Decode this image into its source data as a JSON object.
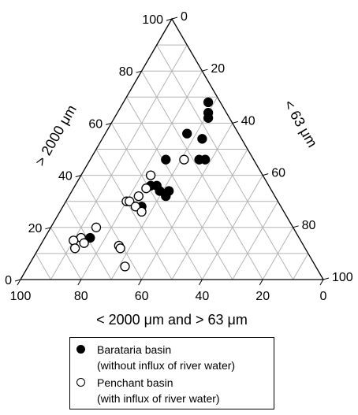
{
  "chart_data": {
    "type": "scatter",
    "subtype": "ternary",
    "axes": {
      "left": {
        "label": "> 2000 μm",
        "ticks": [
          "0",
          "20",
          "40",
          "60",
          "80",
          "100"
        ]
      },
      "right": {
        "label": "< 63 μm",
        "ticks": [
          "0",
          "20",
          "40",
          "60",
          "80",
          "100"
        ]
      },
      "bottom": {
        "label": "< 2000 μm and > 63 μm",
        "ticks": [
          "100",
          "80",
          "60",
          "40",
          "20",
          "0"
        ]
      }
    },
    "grid": true,
    "grid_step": 10,
    "legend_position": "bottom",
    "series": [
      {
        "name": "Barataria basin",
        "name_sub": "(without influx of river water)",
        "marker": "filled",
        "color": "#000000",
        "points": [
          {
            "coarse": 68,
            "fine": 28
          },
          {
            "coarse": 64,
            "fine": 30
          },
          {
            "coarse": 62,
            "fine": 31
          },
          {
            "coarse": 56,
            "fine": 27
          },
          {
            "coarse": 54,
            "fine": 33
          },
          {
            "coarse": 46,
            "fine": 25
          },
          {
            "coarse": 46,
            "fine": 36
          },
          {
            "coarse": 46,
            "fine": 38
          },
          {
            "coarse": 36,
            "fine": 25
          },
          {
            "coarse": 36,
            "fine": 27
          },
          {
            "coarse": 34,
            "fine": 32
          },
          {
            "coarse": 34,
            "fine": 29
          },
          {
            "coarse": 32,
            "fine": 32
          },
          {
            "coarse": 28,
            "fine": 26
          },
          {
            "coarse": 16,
            "fine": 15
          }
        ]
      },
      {
        "name": "Penchant basin",
        "name_sub": "(with influx of river water)",
        "marker": "open",
        "color": "#000000",
        "points": [
          {
            "coarse": 46,
            "fine": 31
          },
          {
            "coarse": 40,
            "fine": 23
          },
          {
            "coarse": 35,
            "fine": 24
          },
          {
            "coarse": 32,
            "fine": 23
          },
          {
            "coarse": 30,
            "fine": 20
          },
          {
            "coarse": 30,
            "fine": 21
          },
          {
            "coarse": 28,
            "fine": 24
          },
          {
            "coarse": 26,
            "fine": 27
          },
          {
            "coarse": 20,
            "fine": 15
          },
          {
            "coarse": 16,
            "fine": 12
          },
          {
            "coarse": 15,
            "fine": 10
          },
          {
            "coarse": 14,
            "fine": 14
          },
          {
            "coarse": 13,
            "fine": 26
          },
          {
            "coarse": 12,
            "fine": 12
          },
          {
            "coarse": 12,
            "fine": 27
          },
          {
            "coarse": 5,
            "fine": 32
          }
        ]
      }
    ]
  }
}
